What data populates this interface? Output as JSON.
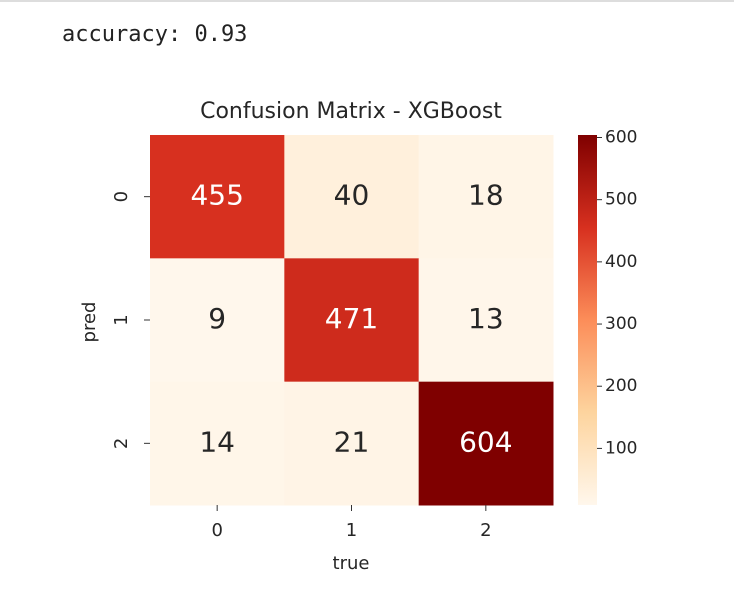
{
  "output": "accuracy: 0.93",
  "chart_data": {
    "type": "heatmap",
    "title": "Confusion Matrix - XGBoost",
    "x_label": "true",
    "y_label": "pred",
    "x_categories": [
      "0",
      "1",
      "2"
    ],
    "y_categories": [
      "0",
      "1",
      "2"
    ],
    "values": [
      [
        455,
        40,
        18
      ],
      [
        9,
        471,
        13
      ],
      [
        14,
        21,
        604
      ]
    ],
    "colorbar_lim": [
      9,
      604
    ],
    "colorbar_ticks": [
      100,
      200,
      300,
      400,
      500,
      600
    ],
    "colors": [
      "#fff7ec",
      "#fdd49e",
      "#fc8d59",
      "#d7301f",
      "#7f0000"
    ]
  }
}
